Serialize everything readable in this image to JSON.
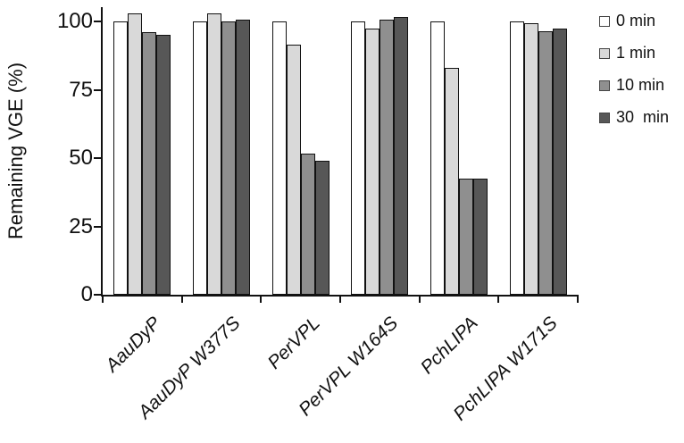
{
  "chart_data": {
    "type": "bar",
    "title": "",
    "xlabel": "",
    "ylabel": "Remaining VGE (%)",
    "ylim": [
      0,
      105
    ],
    "yticks": [
      0,
      25,
      50,
      75,
      100
    ],
    "grid": false,
    "legend_position": "right-top",
    "bar_outline_color": "#111111",
    "axis_color": "#111111",
    "categories": [
      "AauDyP",
      "AauDyP W377S",
      "PerVPL",
      "PerVPL W164S",
      "PchLIPA",
      "PchLIPA W171S"
    ],
    "series": [
      {
        "name": "0 min",
        "color": "#ffffff",
        "values": [
          100,
          100,
          100,
          100,
          100,
          100
        ]
      },
      {
        "name": "1 min",
        "color": "#d9d9d9",
        "values": [
          103,
          103,
          91.5,
          97.5,
          83,
          99.5
        ]
      },
      {
        "name": "10 min",
        "color": "#8f8f8f",
        "values": [
          96,
          100,
          51.5,
          100.5,
          42.5,
          96.5
        ]
      },
      {
        "name": "30  min",
        "color": "#575757",
        "values": [
          95,
          100.5,
          49,
          101.5,
          42.5,
          97.5
        ]
      }
    ]
  }
}
